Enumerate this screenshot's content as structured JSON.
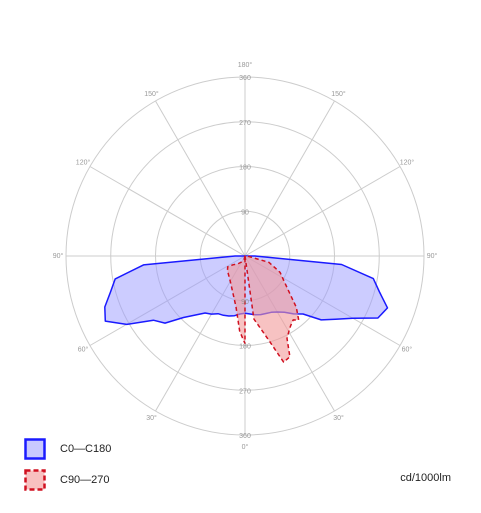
{
  "chart_data": {
    "type": "polar",
    "unit": "cd/1000lm",
    "radial_ticks": [
      "90",
      "180",
      "270",
      "360"
    ],
    "radial_max": 360,
    "angle_labels": [
      {
        "deg": 180,
        "text": "180°"
      },
      {
        "deg": 150,
        "text": "150°",
        "side": "both"
      },
      {
        "deg": 120,
        "text": "120°",
        "side": "both"
      },
      {
        "deg": 90,
        "text": "90°",
        "side": "both"
      },
      {
        "deg": 60,
        "text": "60°",
        "side": "both"
      },
      {
        "deg": 30,
        "text": "30°",
        "side": "both"
      },
      {
        "deg": 0,
        "text": "0°"
      }
    ],
    "series": [
      {
        "name": "C0—C180",
        "stroke": "#1a1aff",
        "fill": "#9999ff",
        "dashed": false,
        "points": [
          [
            -90,
            20
          ],
          [
            -85,
            205
          ],
          [
            -80,
            265
          ],
          [
            -75,
            280
          ],
          [
            -70,
            300
          ],
          [
            -65,
            310
          ],
          [
            -60,
            275
          ],
          [
            -55,
            225
          ],
          [
            -50,
            210
          ],
          [
            -45,
            175
          ],
          [
            -40,
            155
          ],
          [
            -35,
            140
          ],
          [
            -30,
            135
          ],
          [
            -25,
            128
          ],
          [
            -20,
            127
          ],
          [
            -15,
            125
          ],
          [
            -10,
            122
          ],
          [
            -5,
            117
          ],
          [
            0,
            115
          ],
          [
            5,
            117
          ],
          [
            10,
            120
          ],
          [
            15,
            122
          ],
          [
            20,
            123
          ],
          [
            25,
            125
          ],
          [
            30,
            130
          ],
          [
            35,
            138
          ],
          [
            40,
            152
          ],
          [
            45,
            165
          ],
          [
            50,
            200
          ],
          [
            55,
            222
          ],
          [
            60,
            250
          ],
          [
            65,
            295
          ],
          [
            70,
            305
          ],
          [
            75,
            280
          ],
          [
            80,
            262
          ],
          [
            85,
            195
          ],
          [
            90,
            20
          ]
        ]
      },
      {
        "name": "C90—270",
        "stroke": "#d01020",
        "fill": "#f29a9a",
        "dashed": true,
        "points": [
          [
            0,
            0
          ],
          [
            8,
            128
          ],
          [
            16,
            178
          ],
          [
            20,
            227
          ],
          [
            24,
            222
          ],
          [
            27,
            186
          ],
          [
            30,
            176
          ],
          [
            33,
            168
          ],
          [
            37,
            161
          ],
          [
            40,
            168
          ],
          [
            45,
            146
          ],
          [
            50,
            118
          ],
          [
            57,
            94
          ],
          [
            65,
            78
          ],
          [
            75,
            50
          ],
          [
            88,
            5
          ]
        ]
      },
      {
        "name": "C90—270",
        "stroke": "#d01020",
        "fill": "#f29a9a",
        "dashed": true,
        "points": [
          [
            0,
            0
          ],
          [
            -15,
            7
          ],
          [
            -30,
            14
          ],
          [
            -42,
            21
          ],
          [
            -54,
            30
          ],
          [
            -58,
            41
          ],
          [
            -50,
            46
          ],
          [
            -30,
            59
          ],
          [
            -10,
            104
          ],
          [
            -4,
            152
          ],
          [
            0,
            176
          ]
        ]
      }
    ]
  }
}
